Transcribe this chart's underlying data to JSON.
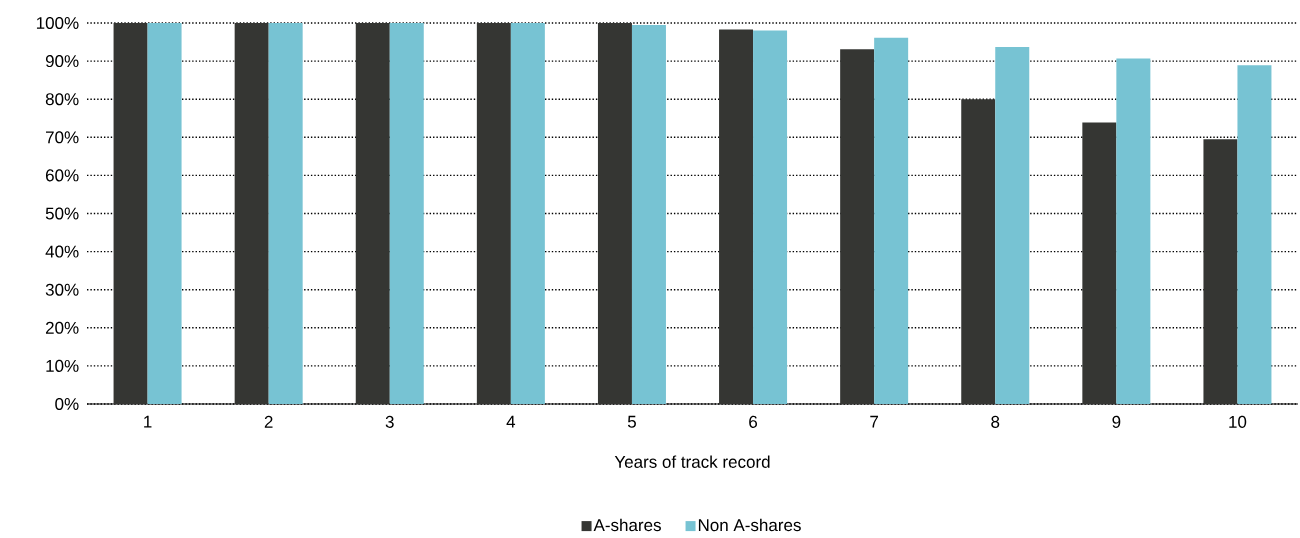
{
  "chart_data": {
    "type": "bar",
    "xlabel": "Years of track record",
    "categories": [
      "1",
      "2",
      "3",
      "4",
      "5",
      "6",
      "7",
      "8",
      "9",
      "10"
    ],
    "series": [
      {
        "name": "A-shares",
        "color": "#353633",
        "values": [
          100,
          100,
          100,
          100,
          100,
          98.3,
          93.1,
          80.0,
          73.9,
          69.5
        ]
      },
      {
        "name": "Non A-shares",
        "color": "#77c3d3",
        "values": [
          100,
          100,
          100,
          100,
          99.5,
          98.0,
          96.1,
          93.7,
          90.7,
          88.9
        ]
      }
    ],
    "ylim": [
      0,
      100
    ],
    "yticks": [
      {
        "value": 0,
        "label": "0%"
      },
      {
        "value": 10,
        "label": "10%"
      },
      {
        "value": 20,
        "label": "20%"
      },
      {
        "value": 30,
        "label": "30%"
      },
      {
        "value": 40,
        "label": "40%"
      },
      {
        "value": 50,
        "label": "50%"
      },
      {
        "value": 60,
        "label": "60%"
      },
      {
        "value": 70,
        "label": "70%"
      },
      {
        "value": 80,
        "label": "80%"
      },
      {
        "value": 90,
        "label": "90%"
      },
      {
        "value": 100,
        "label": "100%"
      }
    ],
    "grid": "y",
    "legend": "bottom"
  }
}
